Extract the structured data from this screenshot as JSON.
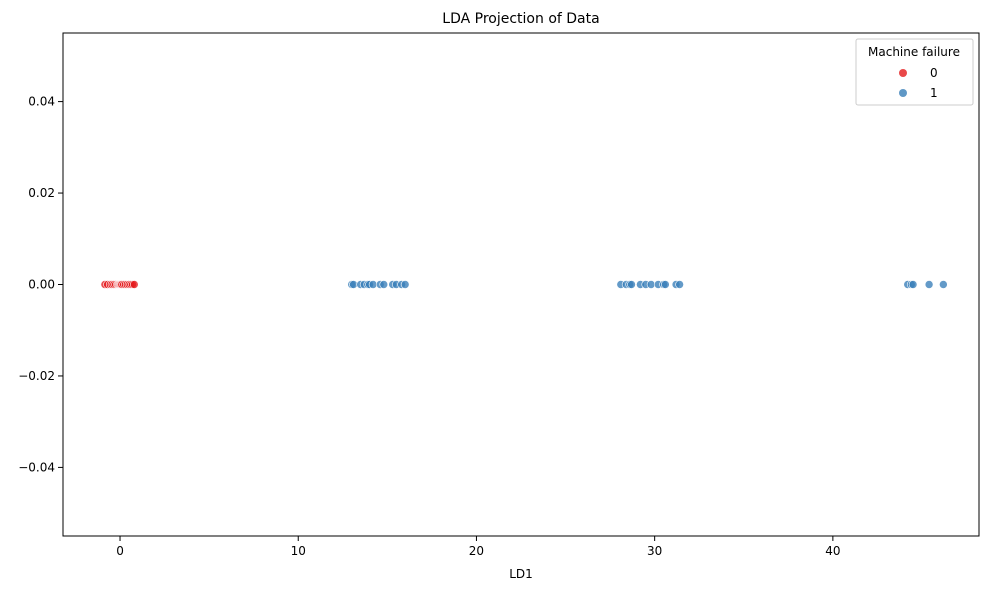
{
  "chart_data": {
    "type": "scatter",
    "title": "LDA Projection of Data",
    "xlabel": "LD1",
    "ylabel": "",
    "xlim": [
      -3.2,
      48.2
    ],
    "ylim": [
      -0.055,
      0.055
    ],
    "xticks": [
      0,
      10,
      20,
      30,
      40
    ],
    "yticks": [
      -0.04,
      -0.02,
      0.0,
      0.02,
      0.04
    ],
    "xtick_labels": [
      "0",
      "10",
      "20",
      "30",
      "40"
    ],
    "ytick_labels": [
      "−0.04",
      "−0.02",
      "0.00",
      "0.02",
      "0.04"
    ],
    "grid": false,
    "legend": {
      "title": "Machine failure",
      "placement": "top-right",
      "entries": [
        "0",
        "1"
      ]
    },
    "series": [
      {
        "name": "0",
        "color": "#e41a1c",
        "x": [
          -0.85,
          -0.7,
          -0.55,
          -0.45,
          -0.35,
          -0.25,
          -0.15,
          -0.1,
          -0.05,
          0.0,
          0.05,
          0.1,
          0.2,
          0.3,
          0.4,
          0.5,
          0.6,
          0.7,
          0.8
        ],
        "y": [
          0,
          0,
          0,
          0,
          0,
          0,
          0,
          0,
          0,
          0,
          0,
          0,
          0,
          0,
          0,
          0,
          0,
          0,
          0
        ]
      },
      {
        "name": "1",
        "color": "#377eb8",
        "x": [
          13.0,
          13.1,
          13.5,
          13.7,
          13.9,
          14.0,
          14.2,
          14.6,
          14.8,
          15.3,
          15.5,
          15.8,
          16.0,
          28.1,
          28.4,
          28.6,
          28.7,
          29.2,
          29.5,
          29.8,
          30.2,
          30.5,
          30.6,
          31.2,
          31.4,
          44.2,
          44.4,
          44.5,
          45.4,
          46.2
        ],
        "y": [
          0,
          0,
          0,
          0,
          0,
          0,
          0,
          0,
          0,
          0,
          0,
          0,
          0,
          0,
          0,
          0,
          0,
          0,
          0,
          0,
          0,
          0,
          0,
          0,
          0,
          0,
          0,
          0,
          0,
          0
        ]
      }
    ]
  }
}
